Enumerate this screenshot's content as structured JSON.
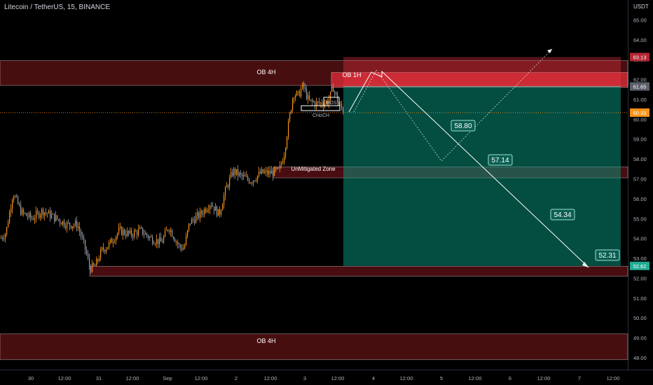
{
  "header": {
    "symbol_title": "Litecoin / TetherUS, 15, BINANCE",
    "price_unit": "USDT"
  },
  "chart_data": {
    "type": "candlestick",
    "title": "Litecoin / TetherUS, 15, BINANCE",
    "y_unit": "USDT",
    "y_axis": {
      "range": [
        47.4,
        66.0
      ],
      "ticks": [
        "48.00",
        "49.00",
        "50.00",
        "51.00",
        "52.00",
        "53.00",
        "54.00",
        "55.00",
        "56.00",
        "57.00",
        "58.00",
        "59.00",
        "60.00",
        "61.00",
        "62.00",
        "63.00",
        "64.00",
        "65.00"
      ]
    },
    "x_axis": {
      "labels": [
        "30",
        "12:00",
        "31",
        "12:00",
        "Sep",
        "12:00",
        "2",
        "12:00",
        "3",
        "12:00",
        "4",
        "12:00",
        "5",
        "12:00",
        "6",
        "12:00",
        "7",
        "12:00"
      ]
    },
    "price_labels": [
      {
        "value": "63.13",
        "color": "#b22833"
      },
      {
        "value": "61.65",
        "color": "#5d606b"
      },
      {
        "value": "60.33",
        "color": "#f7931a"
      },
      {
        "value": "52.62",
        "color": "#22ab94"
      }
    ],
    "zones": [
      {
        "label": "OB 4H",
        "top": 62.95,
        "bottom": 61.7
      },
      {
        "label": "OB 1H",
        "top": 62.35,
        "bottom": 61.6
      },
      {
        "label": "UnMitigated Zone",
        "top": 57.6,
        "bottom": 57.05
      },
      {
        "label": "",
        "top": 52.6,
        "bottom": 52.1
      },
      {
        "label": "OB 4H",
        "top": 49.2,
        "bottom": 47.9
      }
    ],
    "structure_labels": [
      "BOS",
      "CHoCH"
    ],
    "position": {
      "entry": 61.65,
      "stop": 63.13,
      "target": 52.62
    },
    "projection_labels": [
      "58.80",
      "57.14",
      "54.34",
      "52.31"
    ],
    "grid": false
  }
}
